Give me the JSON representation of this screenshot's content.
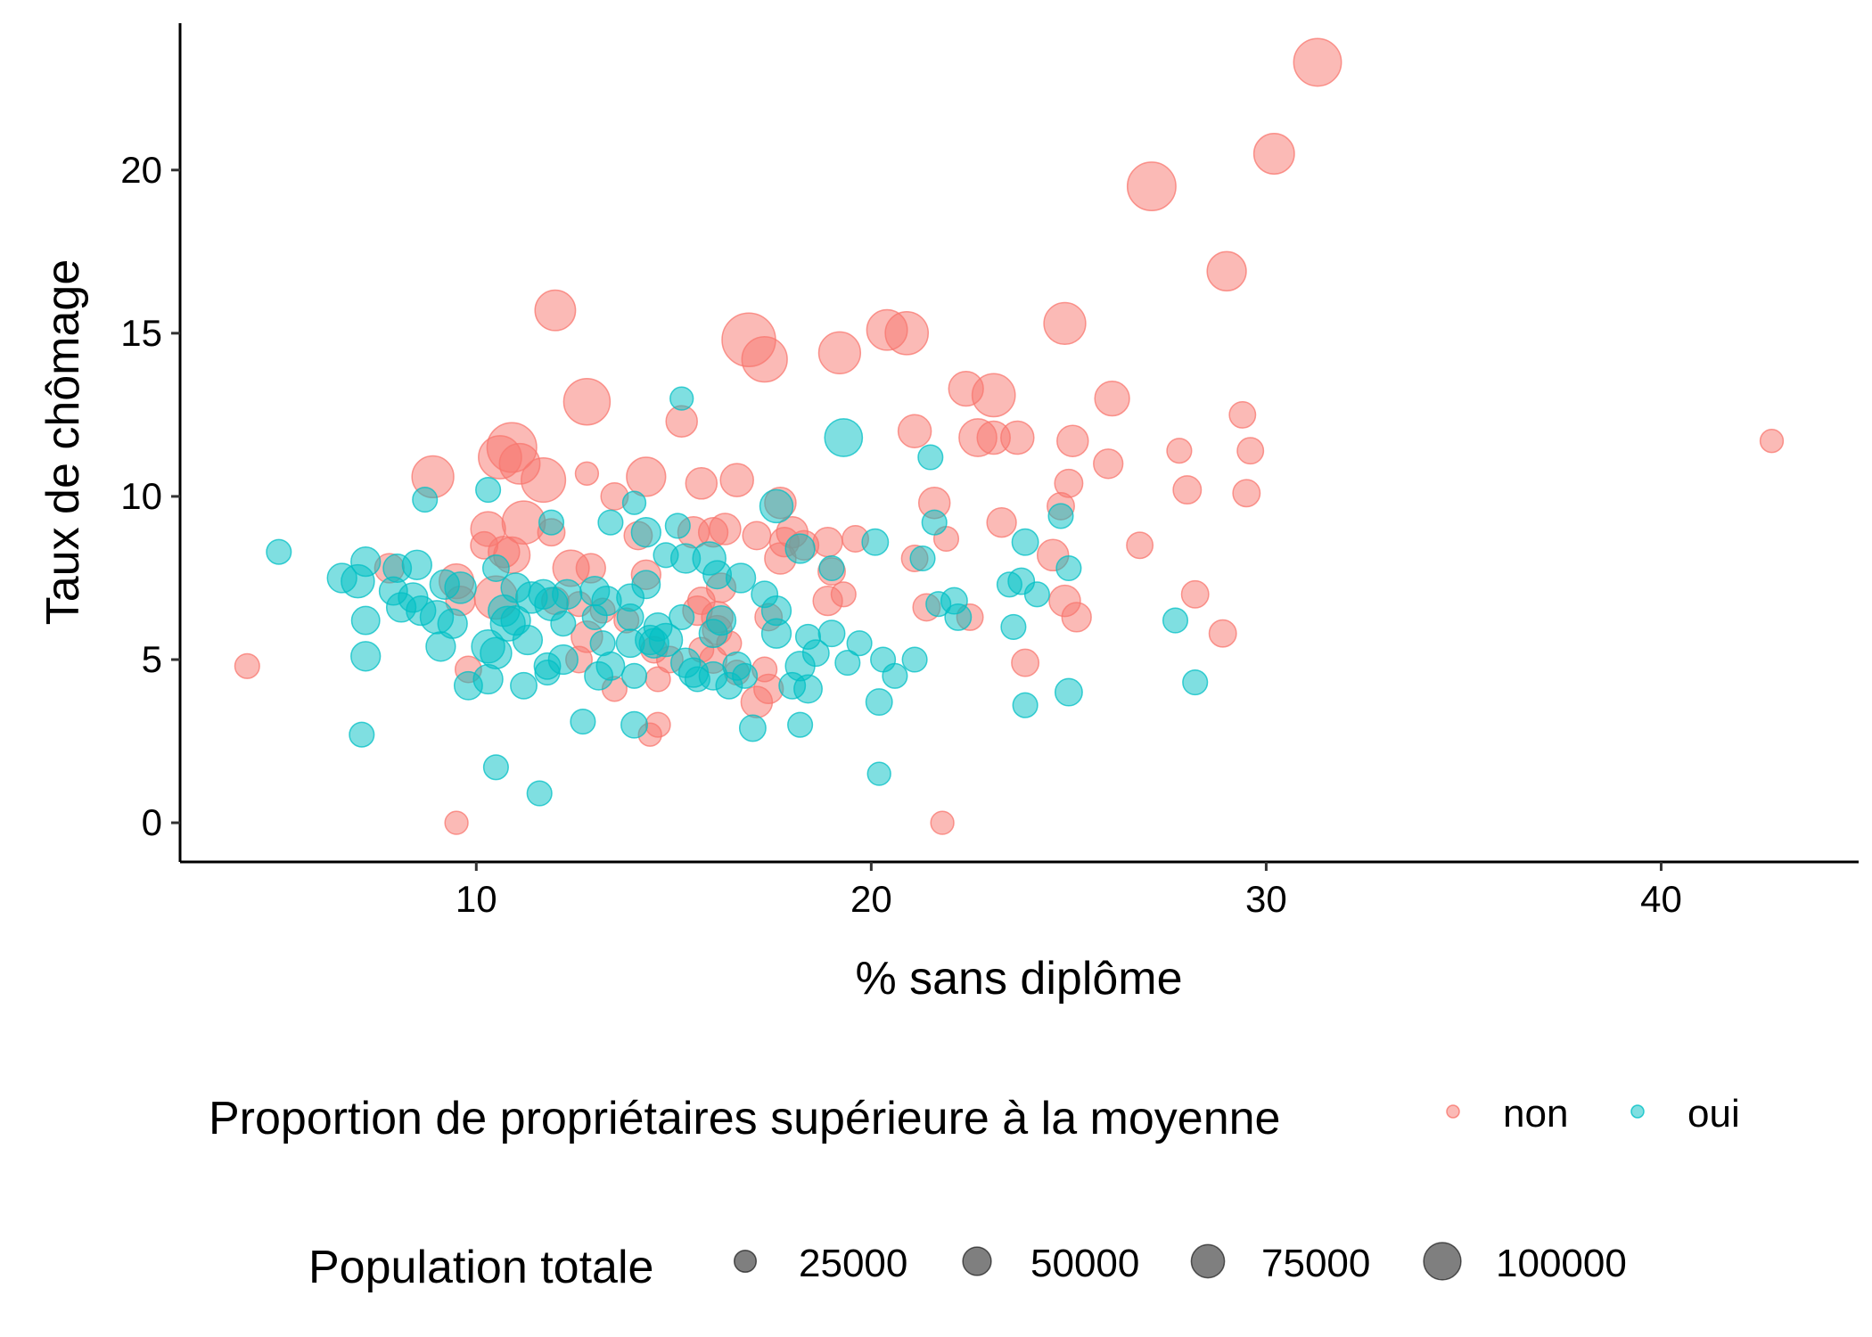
{
  "chart_data": {
    "type": "scatter",
    "xlabel": "% sans diplôme",
    "ylabel": "Taux de chômage",
    "xlim": [
      2.5,
      45
    ],
    "ylim": [
      -1.2,
      24.5
    ],
    "xticks": [
      10,
      20,
      30,
      40
    ],
    "yticks": [
      0,
      5,
      10,
      15,
      20
    ],
    "colors": {
      "non": "#F8766D",
      "oui": "#00BFC4"
    },
    "point_opacity": 0.5,
    "legend_color": {
      "title": "Proportion de propriétaires supérieure à la moyenne",
      "items": [
        {
          "key": "non",
          "label": "non"
        },
        {
          "key": "oui",
          "label": "oui"
        }
      ]
    },
    "legend_size": {
      "title": "Population totale",
      "items": [
        {
          "value": 25000,
          "label": "25000"
        },
        {
          "value": 50000,
          "label": "50000"
        },
        {
          "value": 75000,
          "label": "75000"
        },
        {
          "value": 100000,
          "label": "100000"
        }
      ]
    },
    "series": [
      {
        "name": "non",
        "points": [
          [
            31.3,
            23.3,
            90000
          ],
          [
            30.2,
            20.5,
            60000
          ],
          [
            27.1,
            19.5,
            95000
          ],
          [
            29.0,
            16.9,
            55000
          ],
          [
            16.9,
            14.8,
            120000
          ],
          [
            17.3,
            14.2,
            80000
          ],
          [
            19.2,
            14.4,
            65000
          ],
          [
            20.4,
            15.1,
            60000
          ],
          [
            20.9,
            15.0,
            70000
          ],
          [
            24.9,
            15.3,
            65000
          ],
          [
            12.0,
            15.7,
            60000
          ],
          [
            12.8,
            12.9,
            85000
          ],
          [
            22.4,
            13.3,
            40000
          ],
          [
            23.1,
            13.1,
            70000
          ],
          [
            26.1,
            13.0,
            40000
          ],
          [
            22.7,
            11.8,
            50000
          ],
          [
            23.7,
            11.8,
            35000
          ],
          [
            23.1,
            11.8,
            35000
          ],
          [
            25.1,
            11.7,
            30000
          ],
          [
            21.1,
            12.0,
            35000
          ],
          [
            15.2,
            12.3,
            30000
          ],
          [
            29.4,
            12.5,
            18000
          ],
          [
            29.6,
            11.4,
            18000
          ],
          [
            27.8,
            11.4,
            15000
          ],
          [
            42.8,
            11.7,
            12000
          ],
          [
            26.0,
            11.0,
            25000
          ],
          [
            10.9,
            11.5,
            100000
          ],
          [
            10.6,
            11.2,
            70000
          ],
          [
            11.1,
            11.0,
            60000
          ],
          [
            11.7,
            10.5,
            75000
          ],
          [
            8.9,
            10.6,
            65000
          ],
          [
            14.3,
            10.6,
            55000
          ],
          [
            16.6,
            10.5,
            35000
          ],
          [
            15.7,
            10.4,
            30000
          ],
          [
            12.8,
            10.7,
            12000
          ],
          [
            28.0,
            10.2,
            22000
          ],
          [
            29.5,
            10.1,
            20000
          ],
          [
            25.0,
            10.4,
            22000
          ],
          [
            21.6,
            9.8,
            30000
          ],
          [
            13.5,
            10.0,
            20000
          ],
          [
            17.7,
            9.8,
            30000
          ],
          [
            11.2,
            9.2,
            70000
          ],
          [
            10.3,
            9.0,
            40000
          ],
          [
            10.9,
            8.2,
            45000
          ],
          [
            10.7,
            8.3,
            30000
          ],
          [
            10.2,
            8.5,
            20000
          ],
          [
            11.9,
            8.9,
            20000
          ],
          [
            14.1,
            8.8,
            22000
          ],
          [
            15.5,
            8.9,
            30000
          ],
          [
            16.3,
            9.0,
            30000
          ],
          [
            16.0,
            8.9,
            25000
          ],
          [
            17.1,
            8.8,
            22000
          ],
          [
            18.0,
            8.9,
            30000
          ],
          [
            17.8,
            8.6,
            25000
          ],
          [
            18.3,
            8.5,
            25000
          ],
          [
            18.9,
            8.6,
            25000
          ],
          [
            19.6,
            8.7,
            18000
          ],
          [
            23.3,
            9.2,
            25000
          ],
          [
            24.8,
            9.7,
            20000
          ],
          [
            21.9,
            8.7,
            15000
          ],
          [
            17.7,
            8.1,
            30000
          ],
          [
            12.4,
            7.8,
            45000
          ],
          [
            12.9,
            7.8,
            25000
          ],
          [
            14.3,
            7.6,
            25000
          ],
          [
            16.2,
            7.2,
            25000
          ],
          [
            19.0,
            7.7,
            20000
          ],
          [
            21.1,
            8.1,
            18000
          ],
          [
            24.6,
            8.2,
            30000
          ],
          [
            9.5,
            7.4,
            40000
          ],
          [
            10.5,
            6.9,
            70000
          ],
          [
            7.8,
            7.8,
            25000
          ],
          [
            9.6,
            6.8,
            25000
          ],
          [
            12.0,
            6.8,
            20000
          ],
          [
            12.6,
            6.7,
            15000
          ],
          [
            13.2,
            6.5,
            15000
          ],
          [
            13.8,
            6.2,
            15000
          ],
          [
            15.7,
            6.8,
            20000
          ],
          [
            15.6,
            6.5,
            25000
          ],
          [
            16.1,
            6.3,
            30000
          ],
          [
            16.1,
            5.9,
            25000
          ],
          [
            17.4,
            6.3,
            20000
          ],
          [
            18.9,
            6.8,
            25000
          ],
          [
            19.3,
            7.0,
            15000
          ],
          [
            21.4,
            6.6,
            20000
          ],
          [
            22.5,
            6.3,
            18000
          ],
          [
            24.9,
            6.8,
            30000
          ],
          [
            25.2,
            6.3,
            25000
          ],
          [
            28.2,
            7.0,
            20000
          ],
          [
            12.8,
            5.7,
            30000
          ],
          [
            12.6,
            5.0,
            18000
          ],
          [
            14.5,
            5.3,
            18000
          ],
          [
            14.9,
            5.0,
            18000
          ],
          [
            15.7,
            5.3,
            15000
          ],
          [
            16.4,
            5.5,
            15000
          ],
          [
            16.0,
            5.0,
            20000
          ],
          [
            17.3,
            4.7,
            15000
          ],
          [
            16.6,
            4.6,
            15000
          ],
          [
            17.4,
            4.1,
            25000
          ],
          [
            17.1,
            3.7,
            30000
          ],
          [
            13.5,
            4.1,
            15000
          ],
          [
            14.6,
            4.4,
            15000
          ],
          [
            9.8,
            4.7,
            18000
          ],
          [
            4.2,
            4.8,
            15000
          ],
          [
            23.9,
            4.9,
            20000
          ],
          [
            28.9,
            5.8,
            20000
          ],
          [
            26.8,
            8.5,
            18000
          ],
          [
            14.6,
            3.0,
            15000
          ],
          [
            14.4,
            2.7,
            12000
          ],
          [
            9.5,
            0.0,
            12000
          ],
          [
            21.8,
            0.0,
            12000
          ]
        ]
      },
      {
        "name": "oui",
        "points": [
          [
            19.3,
            11.8,
            50000
          ],
          [
            15.2,
            13.0,
            12000
          ],
          [
            21.5,
            11.2,
            15000
          ],
          [
            10.3,
            10.2,
            15000
          ],
          [
            8.7,
            9.9,
            15000
          ],
          [
            17.6,
            9.7,
            35000
          ],
          [
            14.0,
            9.8,
            12000
          ],
          [
            11.9,
            9.2,
            15000
          ],
          [
            14.3,
            8.9,
            25000
          ],
          [
            15.1,
            9.1,
            15000
          ],
          [
            13.4,
            9.2,
            15000
          ],
          [
            20.1,
            8.6,
            18000
          ],
          [
            23.9,
            8.6,
            18000
          ],
          [
            24.8,
            9.4,
            15000
          ],
          [
            21.6,
            9.2,
            15000
          ],
          [
            18.2,
            8.4,
            25000
          ],
          [
            5.0,
            8.3,
            15000
          ],
          [
            7.2,
            8.0,
            25000
          ],
          [
            6.6,
            7.5,
            25000
          ],
          [
            7.0,
            7.4,
            35000
          ],
          [
            8.5,
            7.9,
            25000
          ],
          [
            8.0,
            7.8,
            22000
          ],
          [
            8.4,
            6.9,
            25000
          ],
          [
            7.9,
            7.1,
            22000
          ],
          [
            8.1,
            6.6,
            25000
          ],
          [
            9.2,
            7.3,
            25000
          ],
          [
            9.6,
            7.2,
            30000
          ],
          [
            10.5,
            7.8,
            18000
          ],
          [
            11.0,
            7.2,
            25000
          ],
          [
            11.7,
            7.0,
            25000
          ],
          [
            11.4,
            6.9,
            30000
          ],
          [
            11.9,
            6.7,
            35000
          ],
          [
            12.3,
            7.0,
            25000
          ],
          [
            13.0,
            7.1,
            25000
          ],
          [
            13.3,
            6.8,
            25000
          ],
          [
            13.9,
            6.9,
            20000
          ],
          [
            14.3,
            7.3,
            22000
          ],
          [
            14.8,
            8.2,
            15000
          ],
          [
            15.3,
            8.1,
            25000
          ],
          [
            15.9,
            8.1,
            35000
          ],
          [
            16.1,
            7.6,
            22000
          ],
          [
            16.7,
            7.5,
            25000
          ],
          [
            17.3,
            7.0,
            18000
          ],
          [
            17.6,
            6.5,
            25000
          ],
          [
            19.0,
            7.8,
            15000
          ],
          [
            21.3,
            8.1,
            15000
          ],
          [
            23.5,
            7.3,
            15000
          ],
          [
            23.8,
            7.4,
            18000
          ],
          [
            24.2,
            7.0,
            15000
          ],
          [
            25.0,
            7.8,
            15000
          ],
          [
            9.4,
            6.1,
            25000
          ],
          [
            9.0,
            6.3,
            35000
          ],
          [
            10.8,
            6.1,
            40000
          ],
          [
            10.7,
            6.5,
            30000
          ],
          [
            11.0,
            6.2,
            25000
          ],
          [
            12.2,
            6.1,
            15000
          ],
          [
            13.0,
            6.3,
            15000
          ],
          [
            13.9,
            6.3,
            18000
          ],
          [
            14.6,
            6.0,
            22000
          ],
          [
            15.2,
            6.3,
            15000
          ],
          [
            16.0,
            5.8,
            22000
          ],
          [
            16.2,
            6.2,
            25000
          ],
          [
            17.6,
            5.8,
            25000
          ],
          [
            18.4,
            5.7,
            15000
          ],
          [
            19.0,
            5.8,
            18000
          ],
          [
            19.7,
            5.5,
            15000
          ],
          [
            21.7,
            6.7,
            15000
          ],
          [
            22.1,
            6.8,
            18000
          ],
          [
            22.2,
            6.3,
            18000
          ],
          [
            23.6,
            6.0,
            15000
          ],
          [
            27.7,
            6.2,
            15000
          ],
          [
            7.2,
            6.2,
            22000
          ],
          [
            7.2,
            5.1,
            25000
          ],
          [
            8.6,
            6.5,
            25000
          ],
          [
            9.1,
            5.4,
            25000
          ],
          [
            10.3,
            5.4,
            35000
          ],
          [
            10.5,
            5.2,
            30000
          ],
          [
            11.3,
            5.6,
            25000
          ],
          [
            12.2,
            5.0,
            25000
          ],
          [
            11.8,
            4.8,
            18000
          ],
          [
            13.2,
            5.5,
            15000
          ],
          [
            13.4,
            4.8,
            22000
          ],
          [
            13.9,
            5.5,
            22000
          ],
          [
            14.4,
            5.6,
            25000
          ],
          [
            14.8,
            5.6,
            35000
          ],
          [
            14.5,
            5.5,
            25000
          ],
          [
            15.3,
            4.9,
            25000
          ],
          [
            15.5,
            4.6,
            25000
          ],
          [
            16.0,
            4.5,
            22000
          ],
          [
            16.6,
            4.8,
            22000
          ],
          [
            18.2,
            4.8,
            25000
          ],
          [
            18.6,
            5.2,
            18000
          ],
          [
            19.4,
            4.9,
            15000
          ],
          [
            20.3,
            5.0,
            15000
          ],
          [
            21.1,
            5.0,
            15000
          ],
          [
            20.6,
            4.5,
            15000
          ],
          [
            9.8,
            4.2,
            22000
          ],
          [
            10.3,
            4.4,
            25000
          ],
          [
            11.2,
            4.2,
            18000
          ],
          [
            11.8,
            4.6,
            15000
          ],
          [
            13.1,
            4.5,
            22000
          ],
          [
            14.0,
            4.5,
            15000
          ],
          [
            15.6,
            4.4,
            15000
          ],
          [
            16.4,
            4.2,
            18000
          ],
          [
            16.8,
            4.5,
            15000
          ],
          [
            18.0,
            4.2,
            18000
          ],
          [
            18.4,
            4.1,
            22000
          ],
          [
            20.2,
            3.7,
            18000
          ],
          [
            25.0,
            4.0,
            20000
          ],
          [
            28.2,
            4.3,
            15000
          ],
          [
            23.9,
            3.6,
            15000
          ],
          [
            12.7,
            3.1,
            15000
          ],
          [
            14.0,
            3.0,
            18000
          ],
          [
            17.0,
            2.9,
            18000
          ],
          [
            18.2,
            3.0,
            15000
          ],
          [
            7.1,
            2.7,
            15000
          ],
          [
            10.5,
            1.7,
            15000
          ],
          [
            11.6,
            0.9,
            15000
          ],
          [
            20.2,
            1.5,
            12000
          ]
        ]
      }
    ]
  }
}
